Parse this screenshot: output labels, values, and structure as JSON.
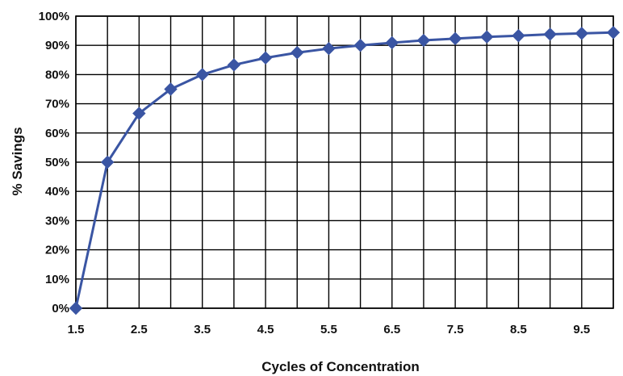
{
  "chart_data": {
    "type": "line",
    "title": "",
    "xlabel": "Cycles of Concentration",
    "ylabel": "% Savings",
    "x": [
      1.5,
      2,
      2.5,
      3,
      3.5,
      4,
      4.5,
      5,
      5.5,
      6,
      6.5,
      7,
      7.5,
      8,
      8.5,
      9,
      9.5,
      10
    ],
    "series": [
      {
        "values": [
          0,
          50,
          66.7,
          75,
          80,
          83.3,
          85.7,
          87.5,
          88.9,
          90,
          90.9,
          91.7,
          92.3,
          92.9,
          93.3,
          93.8,
          94.1,
          94.4
        ]
      }
    ],
    "x_tick_labels": [
      "1.5",
      "2.5",
      "3.5",
      "4.5",
      "5.5",
      "6.5",
      "7.5",
      "8.5",
      "9.5"
    ],
    "y_tick_labels": [
      "0%",
      "10%",
      "20%",
      "30%",
      "40%",
      "50%",
      "60%",
      "70%",
      "80%",
      "90%",
      "100%"
    ],
    "xlim": [
      1.5,
      10
    ],
    "ylim": [
      0,
      100
    ],
    "grid": true,
    "legend": "none",
    "line_color": "#3a55a3",
    "marker": "diamond"
  }
}
